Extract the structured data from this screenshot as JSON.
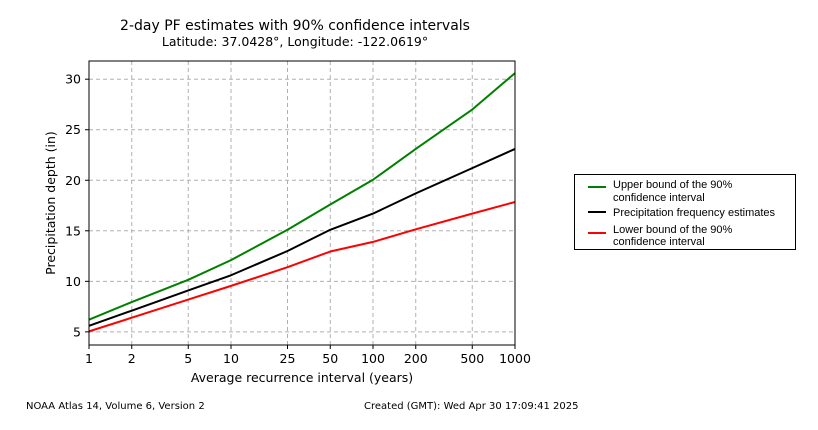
{
  "chart_data": {
    "type": "line",
    "title": "2-day PF estimates with 90% confidence intervals",
    "subtitle": "Latitude: 37.0428°, Longitude: -122.0619°",
    "xlabel": "Average recurrence interval (years)",
    "ylabel": "Precipitation depth (in)",
    "xscale": "log",
    "xlim": [
      1,
      1000
    ],
    "ylim": [
      3.7,
      31.8
    ],
    "grid": true,
    "x": [
      1,
      2,
      5,
      10,
      25,
      50,
      100,
      200,
      500,
      1000
    ],
    "x_tick_labels": [
      "1",
      "2",
      "5",
      "10",
      "25",
      "50",
      "100",
      "200",
      "500",
      "1000"
    ],
    "y_ticks": [
      5,
      10,
      15,
      20,
      25,
      30
    ],
    "y_tick_labels": [
      "5",
      "10",
      "15",
      "20",
      "25",
      "30"
    ],
    "series": [
      {
        "name": "Upper bound of the 90% confidence interval",
        "legend_lines": [
          "Upper bound of the 90%",
          "confidence interval"
        ],
        "color": "#008000",
        "values": [
          6.2,
          7.95,
          10.15,
          12.1,
          15.1,
          17.6,
          20.05,
          23.1,
          27.0,
          30.6
        ]
      },
      {
        "name": "Precipitation frequency estimates",
        "legend_lines": [
          "Precipitation frequency estimates"
        ],
        "color": "#000000",
        "values": [
          5.6,
          7.1,
          9.1,
          10.6,
          13.0,
          15.1,
          16.7,
          18.7,
          21.2,
          23.1
        ]
      },
      {
        "name": "Lower bound of the 90% confidence interval",
        "legend_lines": [
          "Lower bound of the 90%",
          "confidence interval"
        ],
        "color": "#ff0000",
        "values": [
          5.05,
          6.4,
          8.2,
          9.55,
          11.4,
          12.95,
          13.9,
          15.15,
          16.7,
          17.85
        ]
      }
    ],
    "legend_position": "right"
  },
  "footer": {
    "left": "NOAA Atlas 14, Volume 6, Version 2",
    "right": "Created (GMT): Wed Apr 30 17:09:41 2025"
  }
}
